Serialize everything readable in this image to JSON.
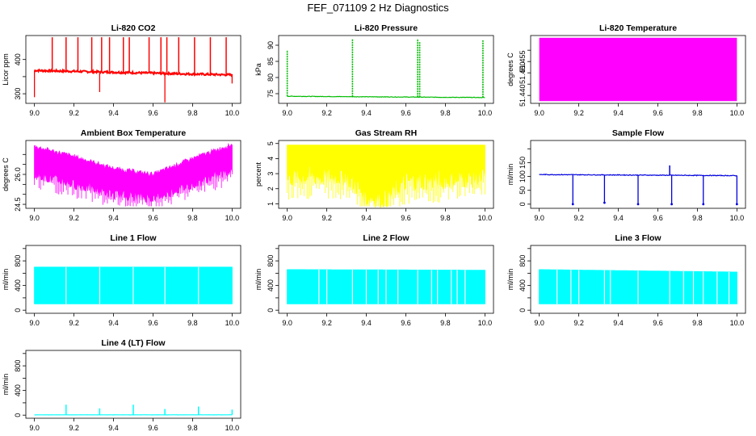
{
  "figure": {
    "title": "FEF_071109  2 Hz Diagnostics"
  },
  "chart_data": [
    {
      "id": "co2",
      "type": "line",
      "title": "Li-820 CO2",
      "ylabel": "Licor ppm",
      "xlim": [
        9.0,
        10.0
      ],
      "ylim": [
        272,
        470
      ],
      "yticks": [
        300,
        350,
        400
      ],
      "yticklabels": [
        "300",
        "",
        "400"
      ],
      "xticks": [
        9.0,
        9.2,
        9.4,
        9.6,
        9.8,
        10.0
      ],
      "xticklabels": [
        "9.0",
        "9.2",
        "9.4",
        "9.6",
        "9.8",
        "10.0"
      ],
      "color": "#ff0000",
      "baseline_start": 368,
      "baseline_end": 355,
      "noise": 6,
      "spikes": [
        [
          9.09,
          465
        ],
        [
          9.16,
          465
        ],
        [
          9.22,
          465
        ],
        [
          9.29,
          465
        ],
        [
          9.34,
          465
        ],
        [
          9.38,
          465
        ],
        [
          9.45,
          465
        ],
        [
          9.48,
          465
        ],
        [
          9.58,
          465
        ],
        [
          9.64,
          465
        ],
        [
          9.67,
          465
        ],
        [
          9.73,
          465
        ],
        [
          9.81,
          465
        ],
        [
          9.89,
          465
        ],
        [
          9.97,
          465
        ]
      ],
      "dips": [
        [
          9.0,
          290
        ],
        [
          9.33,
          305
        ],
        [
          9.66,
          275
        ],
        [
          10.0,
          330
        ]
      ]
    },
    {
      "id": "pressure",
      "type": "line",
      "title": "Li-820 Pressure",
      "ylabel": "kPa",
      "xlim": [
        9.0,
        10.0
      ],
      "ylim": [
        72,
        93
      ],
      "yticks": [
        75,
        80,
        85,
        90
      ],
      "yticklabels": [
        "75",
        "80",
        "85",
        "90"
      ],
      "xticks": [
        9.0,
        9.2,
        9.4,
        9.6,
        9.8,
        10.0
      ],
      "xticklabels": [
        "9.0",
        "9.2",
        "9.4",
        "9.6",
        "9.8",
        "10.0"
      ],
      "color": "#00bb00",
      "baseline_start": 74.2,
      "baseline_end": 73.8,
      "noise": 0.15,
      "spikes": [
        [
          9.0,
          88.5
        ],
        [
          9.33,
          92
        ],
        [
          9.66,
          92
        ],
        [
          9.67,
          91
        ],
        [
          9.99,
          91.5
        ]
      ],
      "dips": []
    },
    {
      "id": "temperature",
      "type": "area",
      "title": "Li-820 Temperature",
      "ylabel": "degrees C",
      "xlim": [
        9.0,
        10.0
      ],
      "ylim": [
        51.4365,
        51.4665
      ],
      "yticks": [
        51.44,
        51.445,
        51.45,
        51.455,
        51.46
      ],
      "yticklabels": [
        "51.440",
        "",
        "51.450",
        "51.455",
        ""
      ],
      "xticks": [
        9.0,
        9.2,
        9.4,
        9.6,
        9.8,
        10.0
      ],
      "xticklabels": [
        "9.0",
        "9.2",
        "9.4",
        "9.6",
        "9.8",
        "10.0"
      ],
      "color": "#ff00ff",
      "band_low": 51.4375,
      "band_high": 51.4655
    },
    {
      "id": "ambient",
      "type": "area",
      "title": "Ambient Box Temperature",
      "ylabel": "degrees C",
      "xlim": [
        9.0,
        10.0
      ],
      "ylim": [
        24.3,
        27.7
      ],
      "yticks": [
        24.5,
        25.0,
        25.5,
        26.0,
        26.5,
        27.0
      ],
      "yticklabels": [
        "24.5",
        "",
        "",
        "26.0",
        "",
        ""
      ],
      "xticks": [
        9.0,
        9.2,
        9.4,
        9.6,
        9.8,
        10.0
      ],
      "xticklabels": [
        "9.0",
        "9.2",
        "9.4",
        "9.6",
        "9.8",
        "10.0"
      ],
      "color": "#ff00ff",
      "upper": [
        [
          9.0,
          27.4
        ],
        [
          9.2,
          26.9
        ],
        [
          9.4,
          26.3
        ],
        [
          9.6,
          26.0
        ],
        [
          9.8,
          26.8
        ],
        [
          10.0,
          27.5
        ]
      ],
      "lower": [
        [
          9.0,
          25.9
        ],
        [
          9.2,
          25.4
        ],
        [
          9.4,
          24.9
        ],
        [
          9.6,
          24.7
        ],
        [
          9.8,
          25.4
        ],
        [
          10.0,
          26.1
        ]
      ]
    },
    {
      "id": "rh",
      "type": "area",
      "title": "Gas Stream RH",
      "ylabel": "percent",
      "xlim": [
        9.0,
        10.0
      ],
      "ylim": [
        0.7,
        5.2
      ],
      "yticks": [
        1,
        2,
        3,
        4,
        5
      ],
      "yticklabels": [
        "1",
        "2",
        "3",
        "4",
        "5"
      ],
      "xticks": [
        9.0,
        9.2,
        9.4,
        9.6,
        9.8,
        10.0
      ],
      "xticklabels": [
        "9.0",
        "9.2",
        "9.4",
        "9.6",
        "9.8",
        "10.0"
      ],
      "color": "#ffff00",
      "upper": [
        [
          9.0,
          4.9
        ],
        [
          10.0,
          4.9
        ]
      ],
      "lower": [
        [
          9.0,
          2.5
        ],
        [
          9.3,
          2.6
        ],
        [
          9.4,
          1.2
        ],
        [
          9.5,
          1.1
        ],
        [
          9.6,
          2.2
        ],
        [
          10.0,
          2.5
        ]
      ]
    },
    {
      "id": "sample-flow",
      "type": "line",
      "title": "Sample Flow",
      "ylabel": "ml/min",
      "xlim": [
        9.0,
        10.0
      ],
      "ylim": [
        -15,
        230
      ],
      "yticks": [
        0,
        50,
        100,
        150,
        200
      ],
      "yticklabels": [
        "0",
        "50",
        "100",
        "150",
        ""
      ],
      "xticks": [
        9.0,
        9.2,
        9.4,
        9.6,
        9.8,
        10.0
      ],
      "xticklabels": [
        "9.0",
        "9.2",
        "9.4",
        "9.6",
        "9.8",
        "10.0"
      ],
      "color": "#0000dd",
      "baseline_start": 107,
      "baseline_end": 103,
      "noise": 2.5,
      "spikes": [
        [
          9.66,
          140
        ]
      ],
      "dips": [
        [
          9.17,
          0
        ],
        [
          9.33,
          5
        ],
        [
          9.5,
          0
        ],
        [
          9.67,
          0
        ],
        [
          9.83,
          0
        ],
        [
          10.0,
          0
        ]
      ]
    },
    {
      "id": "line1",
      "type": "area",
      "title": "Line 1 Flow",
      "ylabel": "ml/min",
      "xlim": [
        9.0,
        10.0
      ],
      "ylim": [
        -50,
        1050
      ],
      "yticks": [
        0,
        200,
        400,
        600,
        800,
        1000
      ],
      "yticklabels": [
        "0",
        "",
        "400",
        "",
        "800",
        ""
      ],
      "xticks": [
        9.0,
        9.2,
        9.4,
        9.6,
        9.8,
        10.0
      ],
      "xticklabels": [
        "9.0",
        "9.2",
        "9.4",
        "9.6",
        "9.8",
        "10.0"
      ],
      "color": "#00ffff",
      "upper": [
        [
          9.0,
          700
        ],
        [
          10.0,
          700
        ]
      ],
      "lower": [
        [
          9.0,
          100
        ],
        [
          10.0,
          100
        ]
      ],
      "gaps": [
        9.16,
        9.33,
        9.5,
        9.66,
        9.83
      ]
    },
    {
      "id": "line2",
      "type": "area",
      "title": "Line 2 Flow",
      "ylabel": "ml/min",
      "xlim": [
        9.0,
        10.0
      ],
      "ylim": [
        -50,
        1050
      ],
      "yticks": [
        0,
        200,
        400,
        600,
        800,
        1000
      ],
      "yticklabels": [
        "0",
        "",
        "400",
        "",
        "800",
        ""
      ],
      "xticks": [
        9.0,
        9.2,
        9.4,
        9.6,
        9.8,
        10.0
      ],
      "xticklabels": [
        "9.0",
        "9.2",
        "9.4",
        "9.6",
        "9.8",
        "10.0"
      ],
      "color": "#00ffff",
      "upper": [
        [
          9.0,
          660
        ],
        [
          10.0,
          650
        ]
      ],
      "lower": [
        [
          9.0,
          100
        ],
        [
          10.0,
          100
        ]
      ],
      "gaps": [
        9.16,
        9.2,
        9.33,
        9.4,
        9.46,
        9.5,
        9.56,
        9.66,
        9.73,
        9.76,
        9.83,
        9.86,
        9.9
      ]
    },
    {
      "id": "line3",
      "type": "area",
      "title": "Line 3 Flow",
      "ylabel": "ml/min",
      "xlim": [
        9.0,
        10.0
      ],
      "ylim": [
        -50,
        1050
      ],
      "yticks": [
        0,
        200,
        400,
        600,
        800,
        1000
      ],
      "yticklabels": [
        "0",
        "",
        "400",
        "",
        "800",
        ""
      ],
      "xticks": [
        9.0,
        9.2,
        9.4,
        9.6,
        9.8,
        10.0
      ],
      "xticklabels": [
        "9.0",
        "9.2",
        "9.4",
        "9.6",
        "9.8",
        "10.0"
      ],
      "color": "#00ffff",
      "upper": [
        [
          9.0,
          660
        ],
        [
          10.0,
          620
        ]
      ],
      "lower": [
        [
          9.0,
          100
        ],
        [
          10.0,
          100
        ]
      ],
      "gaps": [
        9.09,
        9.16,
        9.2,
        9.33,
        9.36,
        9.5,
        9.66,
        9.73,
        9.78,
        9.83,
        9.9,
        9.96
      ]
    },
    {
      "id": "line4",
      "type": "line",
      "title": "Line 4 (LT) Flow",
      "ylabel": "ml/min",
      "xlim": [
        9.0,
        10.0
      ],
      "ylim": [
        -50,
        1050
      ],
      "yticks": [
        0,
        200,
        400,
        600,
        800,
        1000
      ],
      "yticklabels": [
        "0",
        "",
        "400",
        "",
        "800",
        ""
      ],
      "xticks": [
        9.0,
        9.2,
        9.4,
        9.6,
        9.8,
        10.0
      ],
      "xticklabels": [
        "9.0",
        "9.2",
        "9.4",
        "9.6",
        "9.8",
        "10.0"
      ],
      "color": "#00ffff",
      "baseline_start": 5,
      "baseline_end": 5,
      "noise": 2,
      "spikes": [
        [
          9.16,
          170
        ],
        [
          9.33,
          110
        ],
        [
          9.5,
          170
        ],
        [
          9.66,
          100
        ],
        [
          9.83,
          140
        ],
        [
          10.0,
          90
        ]
      ],
      "dips": []
    }
  ]
}
